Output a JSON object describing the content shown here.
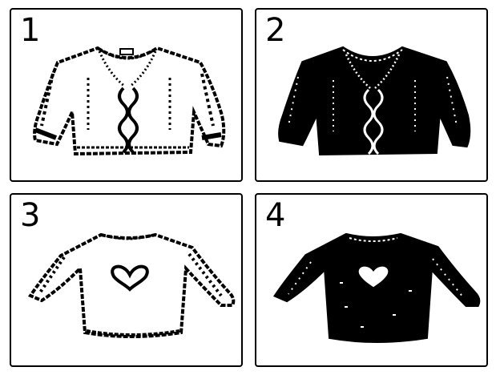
{
  "panels": [
    {
      "number": "1",
      "sweater": "cardigan-cable-white-icon"
    },
    {
      "number": "2",
      "sweater": "cardigan-cable-black-icon"
    },
    {
      "number": "3",
      "sweater": "pullover-heart-white-icon"
    },
    {
      "number": "4",
      "sweater": "pullover-heart-black-icon"
    }
  ]
}
